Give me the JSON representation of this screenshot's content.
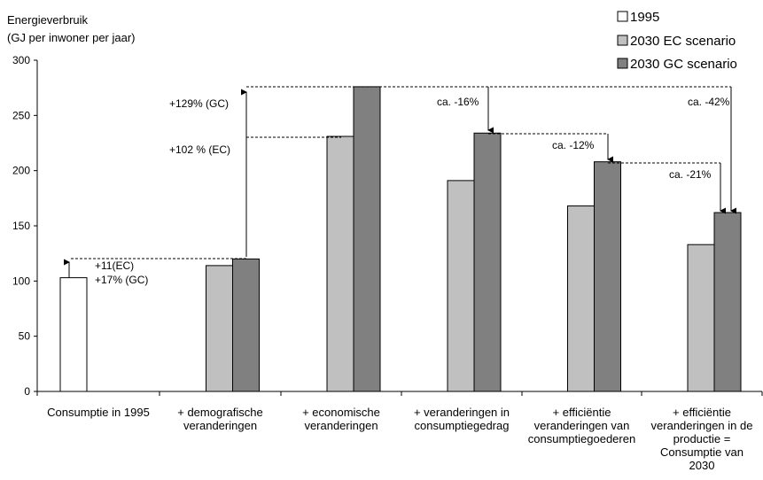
{
  "chart_data": {
    "type": "bar",
    "ylabel_lines": [
      "Energieverbruik",
      "(GJ per inwoner per jaar)"
    ],
    "ylim": [
      0,
      300
    ],
    "yticks": [
      0,
      50,
      100,
      150,
      200,
      250,
      300
    ],
    "grid": false,
    "legend_position": "top-right",
    "categories": [
      [
        "Consumptie in 1995"
      ],
      [
        "+ demografische",
        "veranderingen"
      ],
      [
        "+ economische",
        "veranderingen"
      ],
      [
        "+ veranderingen in",
        "consumptiegedrag"
      ],
      [
        "+ efficiëntie",
        "veranderingen van",
        "consumptiegoederen"
      ],
      [
        "+ efficiëntie",
        "veranderingen in de",
        "productie =",
        "Consumptie van",
        "2030"
      ]
    ],
    "series": [
      {
        "name": "1995",
        "color": "#ffffff",
        "values": [
          103,
          null,
          null,
          null,
          null,
          null
        ]
      },
      {
        "name": "2030 EC scenario",
        "color": "#c0c0c0",
        "values": [
          null,
          114,
          231,
          191,
          168,
          133
        ]
      },
      {
        "name": "2030 GC scenario",
        "color": "#808080",
        "values": [
          null,
          120,
          276,
          234,
          208,
          162
        ]
      }
    ],
    "annotations": [
      {
        "text": "+11(EC)"
      },
      {
        "text": "+17% (GC)"
      },
      {
        "text": "+129% (GC)"
      },
      {
        "text": "+102 % (EC)"
      },
      {
        "text": "ca. -16%"
      },
      {
        "text": "ca. -12%"
      },
      {
        "text": "ca. -21%"
      },
      {
        "text": "ca. -42%"
      }
    ]
  }
}
